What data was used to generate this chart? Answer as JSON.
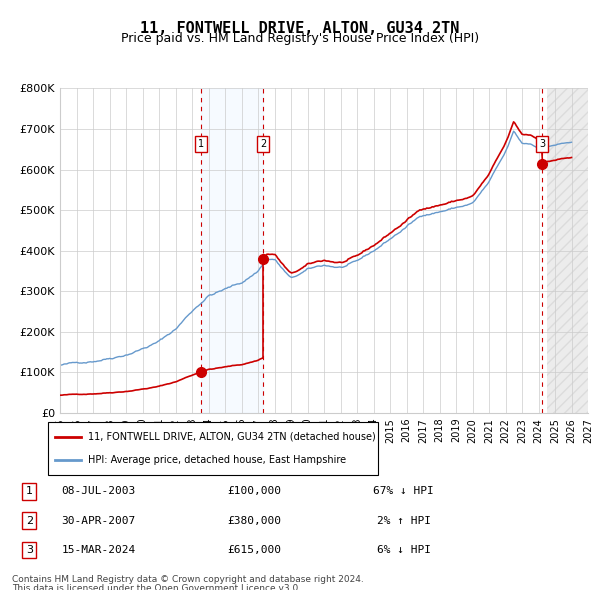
{
  "title": "11, FONTWELL DRIVE, ALTON, GU34 2TN",
  "subtitle": "Price paid vs. HM Land Registry's House Price Index (HPI)",
  "legend_house": "11, FONTWELL DRIVE, ALTON, GU34 2TN (detached house)",
  "legend_hpi": "HPI: Average price, detached house, East Hampshire",
  "footer1": "Contains HM Land Registry data © Crown copyright and database right 2024.",
  "footer2": "This data is licensed under the Open Government Licence v3.0.",
  "transactions": [
    {
      "num": 1,
      "date": "08-JUL-2003",
      "price": 100000,
      "pct": "67% ↓ HPI",
      "year": 2003.52
    },
    {
      "num": 2,
      "date": "30-APR-2007",
      "price": 380000,
      "pct": "2% ↑ HPI",
      "year": 2007.33
    },
    {
      "num": 3,
      "date": "15-MAR-2024",
      "price": 615000,
      "pct": "6% ↓ HPI",
      "year": 2024.21
    }
  ],
  "xmin": 1995,
  "xmax": 2027,
  "ymin": 0,
  "ymax": 800000,
  "yticks": [
    0,
    100000,
    200000,
    300000,
    400000,
    500000,
    600000,
    700000,
    800000
  ],
  "ytick_labels": [
    "£0",
    "£100K",
    "£200K",
    "£300K",
    "£400K",
    "£500K",
    "£600K",
    "£700K",
    "£800K"
  ],
  "hpi_color": "#6699cc",
  "price_color": "#cc0000",
  "dot_color": "#cc0000",
  "background_color": "#ffffff",
  "grid_color": "#cccccc",
  "shade1_color": "#ddeeff",
  "shade2_color": "#dddddd",
  "marker_box_color": "#cc0000"
}
